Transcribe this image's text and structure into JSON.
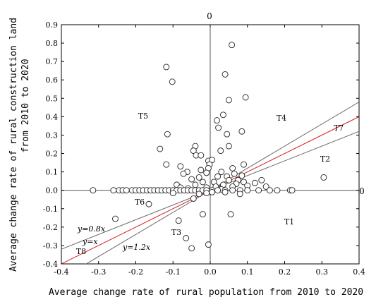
{
  "chart_data": {
    "type": "scatter",
    "xlabel": "Average change rate of rural population from 2010 to 2020",
    "ylabel_lines": [
      "Average change rate of rural construction land",
      "from 2010 to 2020"
    ],
    "xlim": [
      -0.4,
      0.4
    ],
    "ylim": [
      -0.4,
      0.9
    ],
    "x_ticks": [
      "-0.4",
      "-0.3",
      "-0.2",
      "-0.1",
      "0.0",
      "0.1",
      "0.2",
      "0.3",
      "0.4"
    ],
    "y_ticks": [
      "-0.4",
      "-0.3",
      "-0.2",
      "-0.1",
      "0.0",
      "0.1",
      "0.2",
      "0.3",
      "0.4",
      "0.5",
      "0.6",
      "0.7",
      "0.8",
      "0.9"
    ],
    "axis_zero_labels": {
      "top": "0",
      "right": "0"
    },
    "lines": [
      {
        "name": "y=0.8x",
        "slope": 0.8,
        "color": "#6b6b6b",
        "label_x": -0.345,
        "label_y": -0.205
      },
      {
        "name": "y=x",
        "slope": 1.0,
        "color": "#d62020",
        "label_x": -0.33,
        "label_y": -0.275
      },
      {
        "name": "y=1.2x",
        "slope": 1.2,
        "color": "#6b6b6b",
        "label_x": -0.225,
        "label_y": -0.305
      }
    ],
    "line_labels": {
      "y08": "y=0.8x",
      "y1": "y=x",
      "y12": "y=1.2x"
    },
    "regions": [
      {
        "name": "T1",
        "x": 0.215,
        "y": -0.165
      },
      {
        "name": "T2",
        "x": 0.315,
        "y": 0.16
      },
      {
        "name": "T3",
        "x": -0.085,
        "y": -0.215
      },
      {
        "name": "T4",
        "x": 0.195,
        "y": 0.38
      },
      {
        "name": "T5",
        "x": -0.175,
        "y": 0.39
      },
      {
        "name": "T6",
        "x": -0.185,
        "y": -0.065
      },
      {
        "name": "T7",
        "x": 0.345,
        "y": 0.33
      },
      {
        "name": "T8",
        "x": -0.34,
        "y": -0.33
      }
    ],
    "region_labels": {
      "t1": "T1",
      "t2": "T2",
      "t3": "T3",
      "t4": "T4",
      "t5": "T5",
      "t6": "T6",
      "t7": "T7",
      "t8": "T8"
    },
    "points": [
      [
        0.058,
        0.79
      ],
      [
        -0.118,
        0.67
      ],
      [
        0.04,
        0.63
      ],
      [
        -0.102,
        0.59
      ],
      [
        0.095,
        0.505
      ],
      [
        0.05,
        0.49
      ],
      [
        0.035,
        0.41
      ],
      [
        0.018,
        0.38
      ],
      [
        0.022,
        0.34
      ],
      [
        0.085,
        0.32
      ],
      [
        -0.115,
        0.305
      ],
      [
        0.045,
        0.305
      ],
      [
        0.05,
        0.24
      ],
      [
        -0.04,
        0.24
      ],
      [
        -0.135,
        0.225
      ],
      [
        -0.045,
        0.215
      ],
      [
        0.028,
        0.215
      ],
      [
        -0.038,
        0.19
      ],
      [
        -0.025,
        0.19
      ],
      [
        -0.005,
        0.16
      ],
      [
        0.005,
        0.165
      ],
      [
        -0.118,
        0.14
      ],
      [
        -0.002,
        0.14
      ],
      [
        0.09,
        0.14
      ],
      [
        -0.005,
        0.12
      ],
      [
        0.06,
        0.12
      ],
      [
        -0.08,
        0.13
      ],
      [
        -0.025,
        0.11
      ],
      [
        -0.062,
        0.1
      ],
      [
        -0.072,
        0.09
      ],
      [
        0.03,
        0.1
      ],
      [
        -0.01,
        0.095
      ],
      [
        0.065,
        0.09
      ],
      [
        0.085,
        0.08
      ],
      [
        -0.03,
        0.07
      ],
      [
        0.02,
        0.075
      ],
      [
        0.045,
        0.075
      ],
      [
        -0.05,
        0.06
      ],
      [
        0.05,
        0.055
      ],
      [
        0.075,
        0.055
      ],
      [
        0.138,
        0.055
      ],
      [
        -0.02,
        0.045
      ],
      [
        0.01,
        0.045
      ],
      [
        0.09,
        0.045
      ],
      [
        0.12,
        0.04
      ],
      [
        -0.09,
        0.03
      ],
      [
        -0.04,
        0.03
      ],
      [
        0.035,
        0.03
      ],
      [
        0.07,
        0.035
      ],
      [
        0.1,
        0.025
      ],
      [
        0.15,
        0.02
      ],
      [
        0.305,
        0.07
      ],
      [
        -0.08,
        0.015
      ],
      [
        0.015,
        0.02
      ],
      [
        0.06,
        0.02
      ],
      [
        -0.01,
        0.015
      ],
      [
        -0.06,
        0.01
      ],
      [
        0.03,
        0.005
      ],
      [
        -0.315,
        0.0
      ],
      [
        -0.26,
        0.0
      ],
      [
        -0.245,
        0.0
      ],
      [
        -0.235,
        0.0
      ],
      [
        -0.225,
        0.0
      ],
      [
        -0.21,
        0.0
      ],
      [
        -0.2,
        0.0
      ],
      [
        -0.19,
        0.0
      ],
      [
        -0.18,
        0.0
      ],
      [
        -0.17,
        0.0
      ],
      [
        -0.16,
        0.0
      ],
      [
        -0.15,
        0.0
      ],
      [
        -0.14,
        0.0
      ],
      [
        -0.13,
        0.0
      ],
      [
        -0.12,
        0.0
      ],
      [
        -0.11,
        0.0
      ],
      [
        -0.1,
        0.0
      ],
      [
        -0.09,
        0.0
      ],
      [
        -0.08,
        0.0
      ],
      [
        -0.07,
        0.0
      ],
      [
        -0.06,
        0.0
      ],
      [
        -0.05,
        0.0
      ],
      [
        -0.04,
        0.0
      ],
      [
        -0.03,
        0.0
      ],
      [
        -0.02,
        0.0
      ],
      [
        -0.01,
        0.0
      ],
      [
        0.005,
        0.0
      ],
      [
        0.02,
        0.0
      ],
      [
        0.04,
        0.0
      ],
      [
        0.06,
        0.0
      ],
      [
        0.08,
        0.0
      ],
      [
        0.1,
        0.0
      ],
      [
        0.13,
        0.0
      ],
      [
        0.16,
        0.0
      ],
      [
        0.18,
        0.0
      ],
      [
        0.215,
        0.0
      ],
      [
        0.22,
        0.0
      ],
      [
        -0.01,
        -0.015
      ],
      [
        0.005,
        -0.01
      ],
      [
        -0.03,
        -0.02
      ],
      [
        -0.045,
        -0.045
      ],
      [
        -0.1,
        -0.015
      ],
      [
        0.04,
        -0.01
      ],
      [
        -0.255,
        -0.155
      ],
      [
        -0.165,
        -0.075
      ],
      [
        -0.085,
        -0.165
      ],
      [
        -0.065,
        -0.26
      ],
      [
        -0.05,
        -0.315
      ],
      [
        0.055,
        -0.13
      ],
      [
        -0.005,
        -0.295
      ],
      [
        -0.02,
        -0.13
      ],
      [
        0.08,
        -0.02
      ]
    ]
  }
}
